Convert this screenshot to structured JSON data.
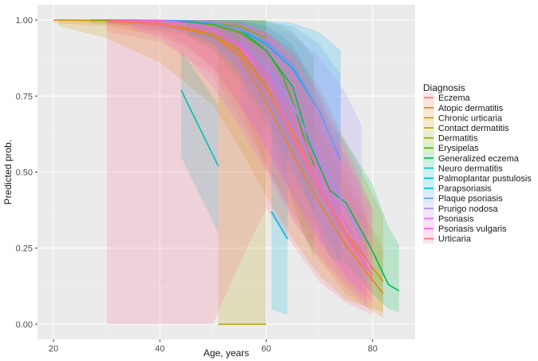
{
  "chart_data": {
    "type": "line",
    "title": "",
    "xlabel": "Age, years",
    "ylabel": "Predicted prob.",
    "xlim": [
      17,
      88
    ],
    "ylim": [
      -0.05,
      1.05
    ],
    "xticks": [
      20,
      40,
      60,
      80
    ],
    "yticks": [
      0.0,
      0.25,
      0.5,
      0.75,
      1.0
    ],
    "ytick_labels": [
      "0.00",
      "0.25",
      "0.50",
      "0.75",
      "1.00"
    ],
    "grid": true,
    "legend_title": "Diagnosis",
    "legend_position": "right",
    "series": [
      {
        "name": "Eczema",
        "color": "#F8766D",
        "x": [
          30,
          40,
          50,
          55,
          60,
          65,
          70,
          75,
          79
        ],
        "y": [
          0.995,
          0.985,
          0.95,
          0.89,
          0.77,
          0.61,
          0.44,
          0.29,
          0.18
        ],
        "lower": [
          0.96,
          0.93,
          0.82,
          0.68,
          0.52,
          0.37,
          0.24,
          0.13,
          0.07
        ],
        "upper": [
          1.0,
          1.0,
          0.995,
          0.98,
          0.94,
          0.84,
          0.68,
          0.5,
          0.35
        ]
      },
      {
        "name": "Atopic dermatitis",
        "color": "#E7851E",
        "x": [
          20,
          30,
          40,
          45,
          50,
          55,
          60,
          65,
          70,
          75,
          82
        ],
        "y": [
          1.0,
          0.998,
          0.99,
          0.975,
          0.95,
          0.88,
          0.73,
          0.56,
          0.4,
          0.26,
          0.1
        ],
        "lower": [
          0.99,
          0.98,
          0.95,
          0.91,
          0.85,
          0.72,
          0.52,
          0.35,
          0.21,
          0.1,
          0.02
        ],
        "upper": [
          1.0,
          1.0,
          1.0,
          0.995,
          0.99,
          0.96,
          0.9,
          0.8,
          0.63,
          0.46,
          0.25
        ]
      },
      {
        "name": "Chronic urticaria",
        "color": "#D09400",
        "x": [
          21,
          30,
          40,
          50,
          55,
          60,
          65,
          70,
          75,
          82
        ],
        "y": [
          1.0,
          0.998,
          0.99,
          0.95,
          0.9,
          0.78,
          0.63,
          0.45,
          0.3,
          0.14
        ],
        "lower": [
          0.98,
          0.94,
          0.86,
          0.72,
          0.58,
          0.42,
          0.28,
          0.16,
          0.08,
          0.04
        ],
        "upper": [
          1.0,
          1.0,
          1.0,
          1.0,
          0.995,
          0.96,
          0.9,
          0.78,
          0.6,
          0.36
        ]
      },
      {
        "name": "Contact dermatitis",
        "color": "#B2A100",
        "x": [
          51,
          60
        ],
        "y": [
          0.0,
          0.0
        ],
        "lower": [
          0.0,
          0.0
        ],
        "upper": [
          1.0,
          1.0
        ]
      },
      {
        "name": "Dermatitis",
        "color": "#89AC00",
        "x": [
          27,
          35,
          45,
          55,
          60
        ],
        "y": [
          1.0,
          1.0,
          0.995,
          0.98,
          0.94
        ],
        "lower": [
          0.99,
          0.98,
          0.95,
          0.88,
          0.8
        ],
        "upper": [
          1.0,
          1.0,
          1.0,
          1.0,
          1.0
        ]
      },
      {
        "name": "Erysipelas",
        "color": "#45B500",
        "x": [
          45,
          50,
          55,
          60,
          63,
          65,
          67,
          69
        ],
        "y": [
          0.995,
          0.985,
          0.96,
          0.9,
          0.82,
          0.73,
          0.62,
          0.52
        ],
        "lower": [
          0.95,
          0.9,
          0.8,
          0.65,
          0.52,
          0.4,
          0.3,
          0.22
        ],
        "upper": [
          1.0,
          1.0,
          1.0,
          0.995,
          0.98,
          0.96,
          0.92,
          0.88
        ]
      },
      {
        "name": "Generalized eczema",
        "color": "#00BC51",
        "x": [
          30,
          40,
          50,
          55,
          60,
          65,
          68,
          70,
          72,
          75,
          80,
          83,
          85
        ],
        "y": [
          1.0,
          0.998,
          0.99,
          0.97,
          0.9,
          0.78,
          0.6,
          0.52,
          0.44,
          0.4,
          0.24,
          0.13,
          0.11
        ],
        "lower": [
          0.99,
          0.98,
          0.94,
          0.88,
          0.73,
          0.55,
          0.4,
          0.3,
          0.22,
          0.2,
          0.1,
          0.05,
          0.04
        ],
        "upper": [
          1.0,
          1.0,
          1.0,
          0.998,
          0.98,
          0.92,
          0.82,
          0.75,
          0.66,
          0.6,
          0.46,
          0.32,
          0.26
        ]
      },
      {
        "name": "Neuro dermatitis",
        "color": "#00C0B4",
        "x": [
          44,
          51
        ],
        "y": [
          0.77,
          0.52
        ],
        "lower": [
          0.55,
          0.3
        ],
        "upper": [
          0.9,
          0.72
        ]
      },
      {
        "name": "Palmoplantar pustulosis",
        "color": "#00BBDA",
        "x": [
          61,
          64
        ],
        "y": [
          0.37,
          0.28
        ],
        "lower": [
          0.05,
          0.03
        ],
        "upper": [
          0.85,
          0.8
        ]
      },
      {
        "name": "Parapsoriasis",
        "color": "#00B4EF",
        "x": [
          45,
          50,
          55,
          60,
          65,
          70,
          74
        ],
        "y": [
          0.998,
          0.99,
          0.97,
          0.92,
          0.84,
          0.7,
          0.54
        ],
        "lower": [
          0.97,
          0.92,
          0.82,
          0.68,
          0.5,
          0.33,
          0.2
        ],
        "upper": [
          1.0,
          1.0,
          1.0,
          0.998,
          0.99,
          0.96,
          0.9
        ]
      },
      {
        "name": "Plaque psoriasis",
        "color": "#619CFF",
        "x": [
          35,
          45,
          50,
          55,
          60,
          65,
          70,
          74
        ],
        "y": [
          1.0,
          0.998,
          0.99,
          0.97,
          0.93,
          0.85,
          0.7,
          0.54
        ],
        "lower": [
          0.99,
          0.96,
          0.92,
          0.84,
          0.72,
          0.58,
          0.42,
          0.3
        ],
        "upper": [
          1.0,
          1.0,
          1.0,
          1.0,
          0.995,
          0.98,
          0.92,
          0.82
        ]
      },
      {
        "name": "Prurigo nodosa",
        "color": "#A58AFF",
        "x": [
          55,
          60,
          65,
          70,
          75,
          78
        ],
        "y": [
          0.93,
          0.85,
          0.72,
          0.55,
          0.38,
          0.28
        ],
        "lower": [
          0.72,
          0.58,
          0.42,
          0.27,
          0.15,
          0.1
        ],
        "upper": [
          1.0,
          0.98,
          0.95,
          0.88,
          0.76,
          0.65
        ]
      },
      {
        "name": "Psoriasis",
        "color": "#DF70F8",
        "x": [
          35,
          40,
          45,
          50,
          55,
          60,
          65,
          70,
          75,
          79
        ],
        "y": [
          1.0,
          0.998,
          0.99,
          0.97,
          0.92,
          0.8,
          0.62,
          0.45,
          0.3,
          0.18
        ],
        "lower": [
          0.97,
          0.94,
          0.88,
          0.78,
          0.65,
          0.5,
          0.34,
          0.22,
          0.12,
          0.06
        ],
        "upper": [
          1.0,
          1.0,
          1.0,
          1.0,
          0.995,
          0.96,
          0.86,
          0.7,
          0.54,
          0.38
        ]
      },
      {
        "name": "Psoriasis vulgaris",
        "color": "#FB61D7",
        "x": [
          30,
          40,
          45,
          50,
          55,
          60,
          65,
          70,
          75,
          80
        ],
        "y": [
          1.0,
          0.998,
          0.99,
          0.97,
          0.92,
          0.83,
          0.68,
          0.5,
          0.33,
          0.18
        ],
        "lower": [
          0.99,
          0.96,
          0.92,
          0.84,
          0.72,
          0.58,
          0.42,
          0.28,
          0.16,
          0.07
        ],
        "upper": [
          1.0,
          1.0,
          1.0,
          0.998,
          0.99,
          0.96,
          0.9,
          0.76,
          0.58,
          0.38
        ]
      },
      {
        "name": "Urticaria",
        "color": "#FF6C91",
        "x": [
          30,
          40,
          50,
          55,
          60,
          65,
          70,
          75,
          80
        ],
        "y": [
          1.0,
          0.99,
          0.96,
          0.91,
          0.8,
          0.64,
          0.46,
          0.3,
          0.16
        ],
        "lower": [
          0.0,
          0.0,
          0.0,
          0.2,
          0.38,
          0.26,
          0.14,
          0.07,
          0.03
        ],
        "upper": [
          1.0,
          1.0,
          1.0,
          0.99,
          0.96,
          0.88,
          0.72,
          0.55,
          0.38
        ]
      }
    ]
  }
}
